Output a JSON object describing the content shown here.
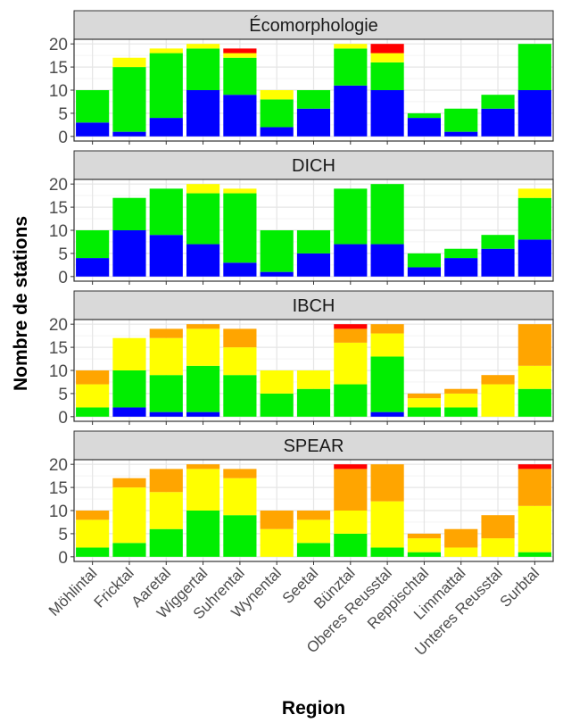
{
  "chart_data": {
    "type": "bar",
    "stacked": true,
    "facets": true,
    "xlabel": "Region",
    "ylabel": "Nombre de stations",
    "ylim": [
      0,
      20
    ],
    "yticks": [
      0,
      5,
      10,
      15,
      20
    ],
    "grid": true,
    "legend": "none",
    "categories": [
      "Möhlintal",
      "Fricktal",
      "Aaretal",
      "Wiggertal",
      "Suhrental",
      "Wynental",
      "Seetal",
      "Bünztal",
      "Oberes Reusstal",
      "Reppischtal",
      "Limmattal",
      "Unteres Reusstal",
      "Surbtal"
    ],
    "series_colors": [
      "#0000ff",
      "#00ee00",
      "#ffff00",
      "#ffa500",
      "#ff0000"
    ],
    "panels": [
      {
        "title": "Écomorphologie",
        "series": [
          {
            "values": [
              3,
              1,
              4,
              10,
              9,
              2,
              6,
              11,
              10,
              4,
              1,
              6,
              10
            ]
          },
          {
            "values": [
              7,
              14,
              14,
              9,
              8,
              6,
              4,
              8,
              6,
              1,
              5,
              3,
              10
            ]
          },
          {
            "values": [
              0,
              2,
              1,
              1,
              1,
              2,
              0,
              1,
              2,
              0,
              0,
              0,
              0
            ]
          },
          {
            "values": [
              0,
              0,
              0,
              0,
              0,
              0,
              0,
              0,
              0,
              0,
              0,
              0,
              0
            ]
          },
          {
            "values": [
              0,
              0,
              0,
              0,
              1,
              0,
              0,
              0,
              2,
              0,
              0,
              0,
              0
            ]
          }
        ]
      },
      {
        "title": "DICH",
        "series": [
          {
            "values": [
              4,
              10,
              9,
              7,
              3,
              1,
              5,
              7,
              7,
              2,
              4,
              6,
              8
            ]
          },
          {
            "values": [
              6,
              7,
              10,
              11,
              15,
              9,
              5,
              12,
              13,
              3,
              2,
              3,
              9
            ]
          },
          {
            "values": [
              0,
              0,
              0,
              2,
              1,
              0,
              0,
              0,
              0,
              0,
              0,
              0,
              2
            ]
          },
          {
            "values": [
              0,
              0,
              0,
              0,
              0,
              0,
              0,
              0,
              0,
              0,
              0,
              0,
              0
            ]
          },
          {
            "values": [
              0,
              0,
              0,
              0,
              0,
              0,
              0,
              0,
              0,
              0,
              0,
              0,
              0
            ]
          }
        ]
      },
      {
        "title": "IBCH",
        "series": [
          {
            "values": [
              0,
              2,
              1,
              1,
              0,
              0,
              0,
              0,
              1,
              0,
              0,
              0,
              0
            ]
          },
          {
            "values": [
              2,
              8,
              8,
              10,
              9,
              5,
              6,
              7,
              12,
              2,
              2,
              0,
              6
            ]
          },
          {
            "values": [
              5,
              7,
              8,
              8,
              6,
              5,
              4,
              9,
              5,
              2,
              3,
              7,
              5
            ]
          },
          {
            "values": [
              3,
              0,
              2,
              1,
              4,
              0,
              0,
              3,
              2,
              1,
              1,
              2,
              9
            ]
          },
          {
            "values": [
              0,
              0,
              0,
              0,
              0,
              0,
              0,
              1,
              0,
              0,
              0,
              0,
              0
            ]
          }
        ]
      },
      {
        "title": "SPEAR",
        "series": [
          {
            "values": [
              0,
              0,
              0,
              0,
              0,
              0,
              0,
              0,
              0,
              0,
              0,
              0,
              0
            ]
          },
          {
            "values": [
              2,
              3,
              6,
              10,
              9,
              0,
              3,
              5,
              2,
              1,
              0,
              0,
              1
            ]
          },
          {
            "values": [
              6,
              12,
              8,
              9,
              8,
              6,
              5,
              5,
              10,
              3,
              2,
              4,
              10
            ]
          },
          {
            "values": [
              2,
              2,
              5,
              1,
              2,
              4,
              2,
              9,
              8,
              1,
              4,
              5,
              8
            ]
          },
          {
            "values": [
              0,
              0,
              0,
              0,
              0,
              0,
              0,
              1,
              0,
              0,
              0,
              0,
              1
            ]
          }
        ]
      }
    ]
  }
}
